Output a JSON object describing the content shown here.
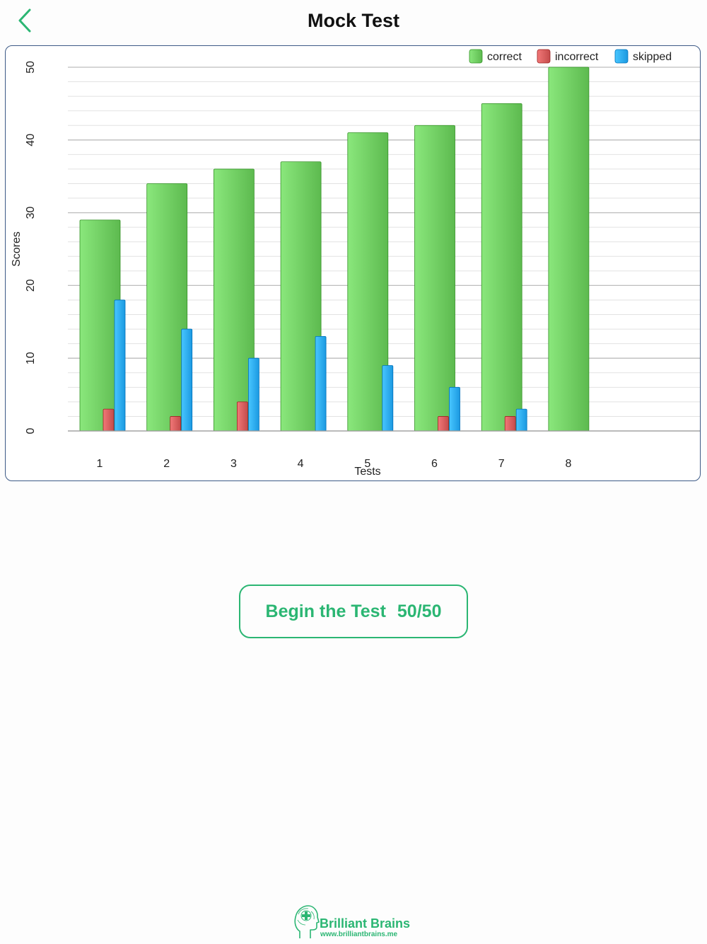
{
  "nav": {
    "title": "Mock Test",
    "back_icon": "chevron-left-icon"
  },
  "chart_data": {
    "type": "bar",
    "xlabel": "Tests",
    "ylabel": "Scores",
    "ylim": [
      0,
      50
    ],
    "yticks": [
      0,
      10,
      20,
      30,
      40,
      50
    ],
    "grid": true,
    "legend_position": "top-right",
    "categories": [
      "1",
      "2",
      "3",
      "4",
      "5",
      "6",
      "7",
      "8"
    ],
    "series": [
      {
        "name": "correct",
        "color": "#6cc95e",
        "values": [
          29,
          34,
          36,
          37,
          41,
          42,
          45,
          50
        ]
      },
      {
        "name": "incorrect",
        "color": "#d35a5a",
        "values": [
          3,
          2,
          4,
          0,
          0,
          2,
          2,
          0
        ]
      },
      {
        "name": "skipped",
        "color": "#2aa8f0",
        "values": [
          18,
          14,
          10,
          13,
          9,
          6,
          3,
          0
        ]
      }
    ]
  },
  "begin_button": {
    "label": "Begin the Test",
    "count": "50/50"
  },
  "footer": {
    "brand": "Brilliant Brains",
    "url": "www.brilliantbrains.me",
    "accent": "#2bb673"
  }
}
